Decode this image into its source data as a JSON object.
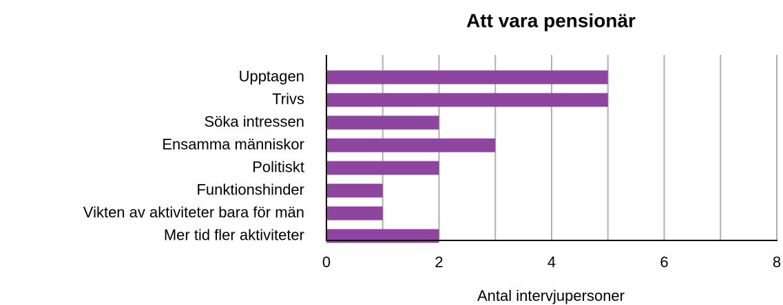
{
  "chart_data": {
    "type": "barh",
    "title": "Att vara pensionär",
    "categories": [
      "Upptagen",
      "Trivs",
      "Söka intressen",
      "Ensamma människor",
      "Politiskt",
      "Funktionshinder",
      "Vikten av aktiviteter bara för män",
      "Mer tid fler aktiviteter"
    ],
    "values": [
      5,
      5,
      2,
      3,
      2,
      1,
      1,
      2
    ],
    "color": "#8e45a0",
    "x_label": "Antal intervjupersoner",
    "xlim": [
      0,
      8
    ],
    "xticks": [
      0,
      2,
      4,
      6,
      8
    ],
    "minor_xticks": [
      1,
      3,
      5,
      7
    ],
    "grid": true
  }
}
